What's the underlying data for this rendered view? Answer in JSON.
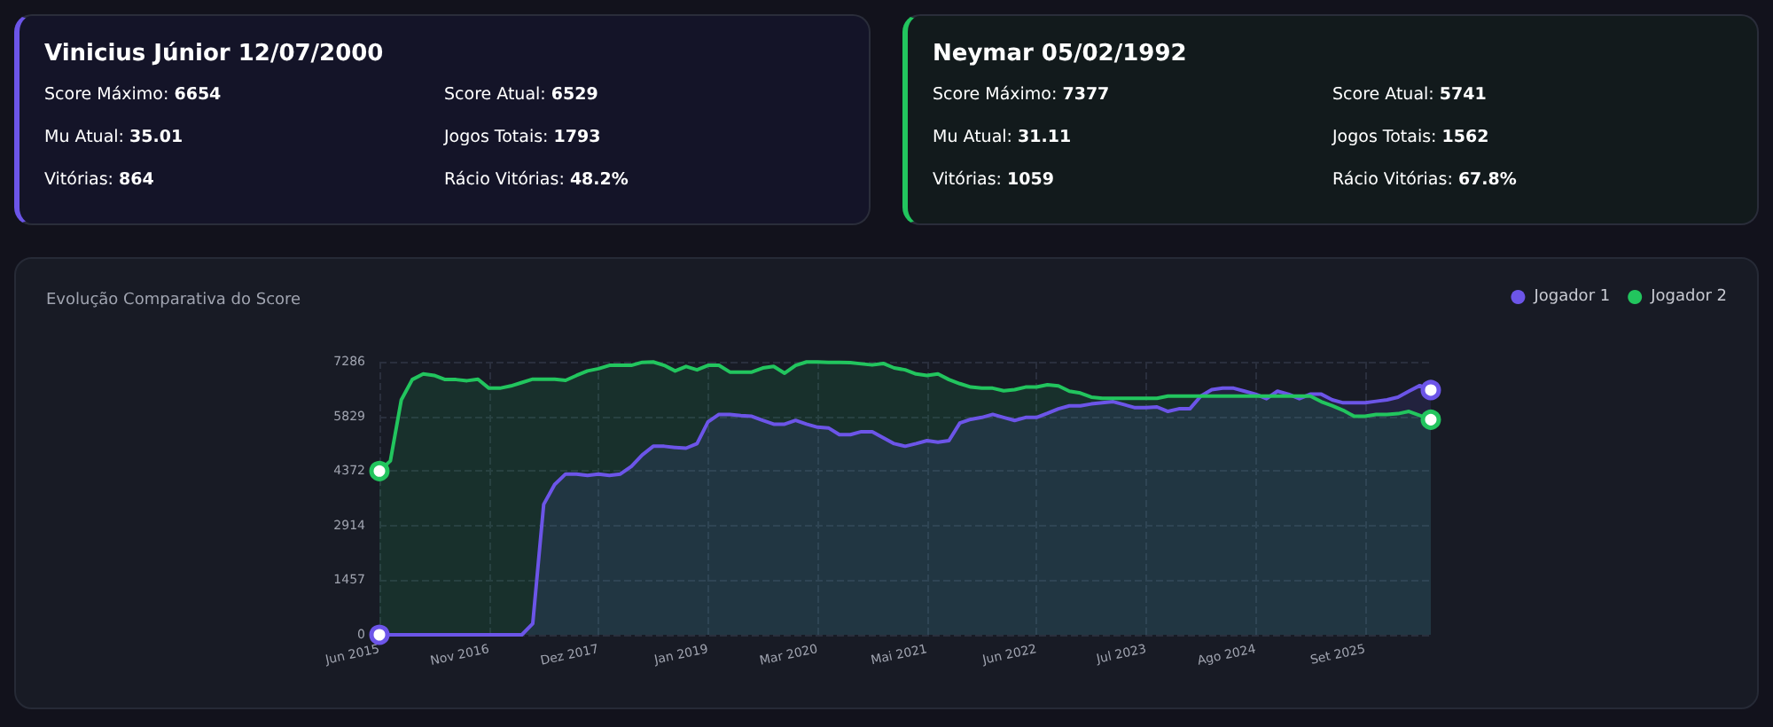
{
  "chart_data": [
    {
      "type": "other",
      "title": "Vinicius Júnior 12/07/2000",
      "annotations": [
        "Score Máximo: 6654",
        "Score Atual: 6529",
        "Mu Atual: 35.01",
        "Jogos Totais: 1793",
        "Vitórias: 864",
        "Rácio Vitórias: 48.2%"
      ]
    },
    {
      "type": "other",
      "title": "Neymar 05/02/1992",
      "annotations": [
        "Score Máximo: 7377",
        "Score Atual: 5741",
        "Mu Atual: 31.11",
        "Jogos Totais: 1562",
        "Vitórias: 1059",
        "Rácio Vitórias: 67.8%"
      ]
    },
    {
      "type": "area",
      "title": "Evolução Comparativa do Score",
      "categories": [
        "Jun 2015",
        null,
        null,
        null,
        null,
        null,
        null,
        null,
        null,
        null,
        "Nov 2016",
        null,
        null,
        null,
        null,
        null,
        null,
        null,
        null,
        null,
        "Dez 2017",
        null,
        null,
        null,
        null,
        null,
        null,
        null,
        null,
        null,
        "Jan 2019",
        null,
        null,
        null,
        null,
        null,
        null,
        null,
        null,
        null,
        "Mar 2020",
        null,
        null,
        null,
        null,
        null,
        null,
        null,
        null,
        null,
        "Mai 2021",
        null,
        null,
        null,
        null,
        null,
        null,
        null,
        null,
        null,
        "Jun 2022",
        null,
        null,
        null,
        null,
        null,
        null,
        null,
        null,
        null,
        "Jul 2023",
        null,
        null,
        null,
        null,
        null,
        null,
        null,
        null,
        null,
        "Ago 2024",
        null,
        null,
        null,
        null,
        null,
        null,
        null,
        null,
        null,
        "Set 2025",
        null,
        null,
        null,
        null,
        null,
        null
      ],
      "series": [
        {
          "name": "Jogador 1",
          "color": "#6c55e8",
          "values": [
            0,
            0,
            0,
            0,
            0,
            0,
            0,
            0,
            0,
            0,
            0,
            0,
            0,
            0,
            300,
            3480,
            4010,
            4290,
            4290,
            4250,
            4290,
            4250,
            4290,
            4490,
            4800,
            5030,
            5030,
            5000,
            4980,
            5100,
            5680,
            5880,
            5880,
            5850,
            5830,
            5720,
            5620,
            5620,
            5720,
            5620,
            5540,
            5520,
            5340,
            5340,
            5420,
            5420,
            5260,
            5100,
            5030,
            5100,
            5180,
            5140,
            5180,
            5650,
            5750,
            5800,
            5880,
            5800,
            5720,
            5800,
            5800,
            5910,
            6030,
            6110,
            6110,
            6160,
            6190,
            6220,
            6140,
            6060,
            6060,
            6080,
            5960,
            6030,
            6030,
            6370,
            6540,
            6580,
            6580,
            6500,
            6420,
            6300,
            6500,
            6420,
            6300,
            6420,
            6420,
            6270,
            6190,
            6190,
            6190,
            6230,
            6270,
            6340,
            6500,
            6650,
            6530
          ]
        },
        {
          "name": "Jogador 2",
          "color": "#22c55e",
          "values": [
            4370,
            4640,
            6270,
            6810,
            6960,
            6920,
            6810,
            6810,
            6780,
            6820,
            6580,
            6580,
            6640,
            6730,
            6820,
            6820,
            6820,
            6790,
            6920,
            7040,
            7100,
            7190,
            7190,
            7190,
            7270,
            7280,
            7190,
            7040,
            7160,
            7070,
            7190,
            7190,
            7010,
            7010,
            7010,
            7120,
            7160,
            6980,
            7190,
            7280,
            7280,
            7270,
            7270,
            7260,
            7230,
            7200,
            7240,
            7120,
            7070,
            6960,
            6920,
            6960,
            6810,
            6700,
            6610,
            6580,
            6580,
            6510,
            6540,
            6610,
            6610,
            6670,
            6640,
            6500,
            6450,
            6340,
            6310,
            6310,
            6310,
            6310,
            6310,
            6310,
            6370,
            6370,
            6370,
            6370,
            6370,
            6370,
            6370,
            6370,
            6370,
            6370,
            6370,
            6370,
            6370,
            6370,
            6220,
            6110,
            5990,
            5830,
            5830,
            5880,
            5880,
            5900,
            5960,
            5850,
            5740
          ]
        }
      ],
      "ylim": [
        0,
        7286
      ],
      "yticks": [
        0,
        1457,
        2914,
        4372,
        5829,
        7286
      ],
      "grid": true,
      "legend": "top right",
      "line_style": "solid"
    }
  ]
}
